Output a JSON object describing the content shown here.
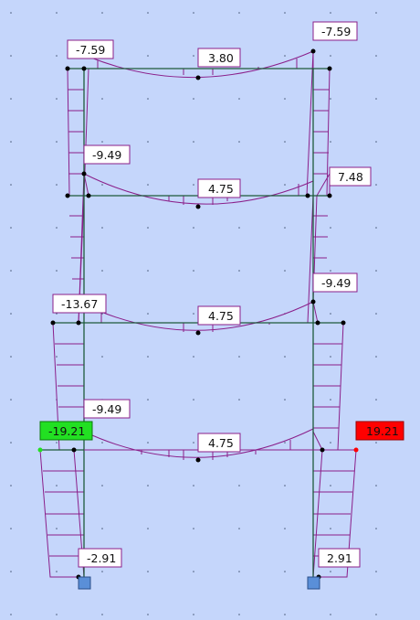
{
  "colors": {
    "background": "#c5d6fb",
    "frame": "#1d5a3a",
    "moment_diagram": "#8a1f8a",
    "label_fill": "#ffffff",
    "label_border": "#8a1f8a",
    "max_negative_highlight": "#22e022",
    "max_positive_highlight": "#ff0000",
    "support": "#5a8fd8"
  },
  "moment_labels": [
    {
      "id": "roof-left-end",
      "text": "-7.59"
    },
    {
      "id": "roof-midspan",
      "text": "3.80"
    },
    {
      "id": "roof-right-end",
      "text": "-7.59"
    },
    {
      "id": "floor3-left-end",
      "text": "-9.49"
    },
    {
      "id": "floor3-midspan",
      "text": "4.75"
    },
    {
      "id": "floor3-right-end",
      "text": "7.48"
    },
    {
      "id": "floor2-left-end",
      "text": "-13.67"
    },
    {
      "id": "floor2-midspan",
      "text": "4.75"
    },
    {
      "id": "floor2-right-end",
      "text": "-9.49"
    },
    {
      "id": "floor1-left-end",
      "text": "-9.49"
    },
    {
      "id": "floor1-midspan",
      "text": "4.75"
    },
    {
      "id": "max-negative",
      "text": "-19.21"
    },
    {
      "id": "max-positive",
      "text": "19.21"
    },
    {
      "id": "left-base",
      "text": "-2.91"
    },
    {
      "id": "right-base",
      "text": "2.91"
    }
  ]
}
